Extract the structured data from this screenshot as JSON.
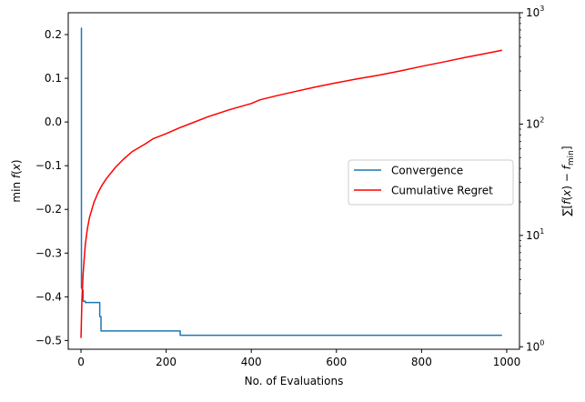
{
  "chart_data": {
    "type": "line",
    "title": "",
    "xlabel": "No. of Evaluations",
    "ylabel": "min f(x)",
    "ylabel_right": "∑[f(x) − f_min]",
    "xlim": [
      -30,
      1030
    ],
    "ylim": [
      -0.52,
      0.25
    ],
    "ylim_right_log": [
      0.95,
      1000
    ],
    "xticks": [
      0,
      200,
      400,
      600,
      800,
      1000
    ],
    "yticks": [
      0.2,
      0.1,
      0.0,
      -0.1,
      -0.2,
      -0.3,
      -0.4,
      -0.5
    ],
    "ytick_labels": [
      "0.2",
      "0.1",
      "0.0",
      "−0.1",
      "−0.2",
      "−0.3",
      "−0.4",
      "−0.5"
    ],
    "yticks_right": [
      1,
      10,
      100,
      1000
    ],
    "ytick_right_labels": [
      "10",
      "10",
      "10",
      "10"
    ],
    "ytick_right_exponents": [
      "0",
      "1",
      "2",
      "3"
    ],
    "legend": {
      "position": "center-right",
      "entries": [
        "Convergence",
        "Cumulative Regret"
      ]
    },
    "grid": false,
    "series": [
      {
        "name": "Convergence",
        "axis": "left",
        "color": "#1f77b4",
        "step": true,
        "x": [
          0,
          1,
          3,
          5,
          10,
          20,
          42,
          44,
          47,
          230,
          233,
          989
        ],
        "y": [
          0.215,
          -0.38,
          -0.385,
          -0.41,
          -0.413,
          -0.413,
          -0.413,
          -0.445,
          -0.478,
          -0.478,
          -0.488,
          -0.488
        ]
      },
      {
        "name": "Cumulative Regret",
        "axis": "right",
        "color": "#ff0000",
        "x": [
          0,
          2,
          5,
          10,
          15,
          20,
          30,
          40,
          50,
          60,
          80,
          100,
          120,
          150,
          170,
          200,
          230,
          260,
          300,
          350,
          400,
          420,
          460,
          500,
          550,
          600,
          650,
          700,
          750,
          800,
          850,
          900,
          950,
          989
        ],
        "y": [
          1.2,
          2.5,
          4.6,
          8.2,
          11.5,
          14.5,
          19.6,
          24.2,
          28.5,
          32.5,
          40.5,
          48.5,
          56.5,
          66,
          74,
          82,
          92,
          102,
          117,
          135,
          153,
          165,
          180,
          195,
          215,
          235,
          255,
          275,
          300,
          330,
          360,
          395,
          430,
          460
        ]
      }
    ]
  }
}
